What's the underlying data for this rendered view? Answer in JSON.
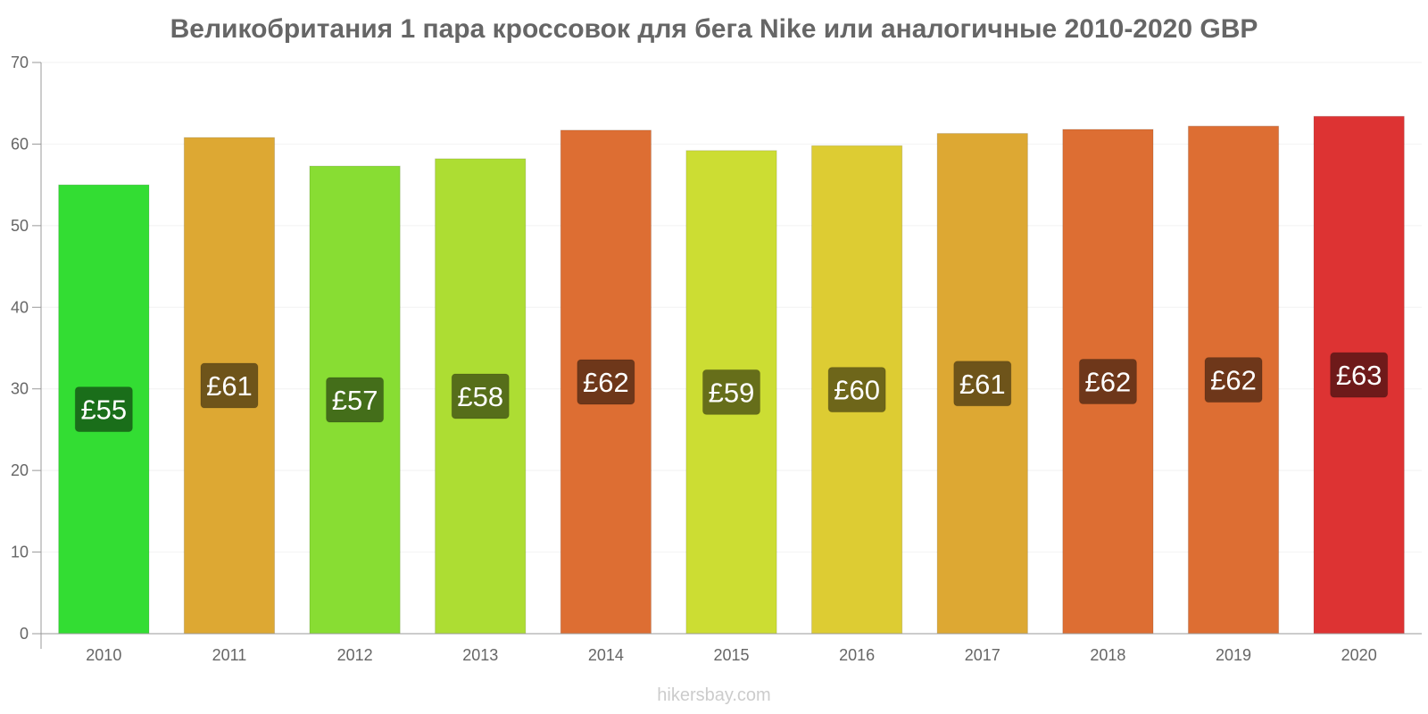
{
  "chart_data": {
    "type": "bar",
    "title": "Великобритания 1 пара кроссовок для бега Nike или аналогичные 2010-2020 GBP",
    "categories": [
      "2010",
      "2011",
      "2012",
      "2013",
      "2014",
      "2015",
      "2016",
      "2017",
      "2018",
      "2019",
      "2020"
    ],
    "values": [
      55.0,
      60.8,
      57.3,
      58.2,
      61.7,
      59.2,
      59.8,
      61.3,
      61.8,
      62.2,
      63.4
    ],
    "data_labels": [
      "£55",
      "£61",
      "£57",
      "£58",
      "£62",
      "£59",
      "£60",
      "£61",
      "£62",
      "£62",
      "£63"
    ],
    "bar_colors": [
      "#33dd33",
      "#dda833",
      "#88dd33",
      "#addd33",
      "#dd6e33",
      "#ccdd33",
      "#ddcc33",
      "#dda833",
      "#dd6e33",
      "#dd6e33",
      "#dd3333"
    ],
    "label_colors": [
      "#1a6e1a",
      "#6e541a",
      "#446e1a",
      "#566e1a",
      "#6e371a",
      "#666e1a",
      "#6e661a",
      "#6e541a",
      "#6e371a",
      "#6e371a",
      "#6e1a1a"
    ],
    "yticks": [
      "0",
      "10",
      "20",
      "30",
      "40",
      "50",
      "60",
      "70"
    ],
    "ylim": [
      0,
      70
    ],
    "xlabel": "",
    "ylabel": "",
    "grid": true,
    "legend": "none"
  },
  "footer": {
    "source": "hikersbay.com"
  }
}
